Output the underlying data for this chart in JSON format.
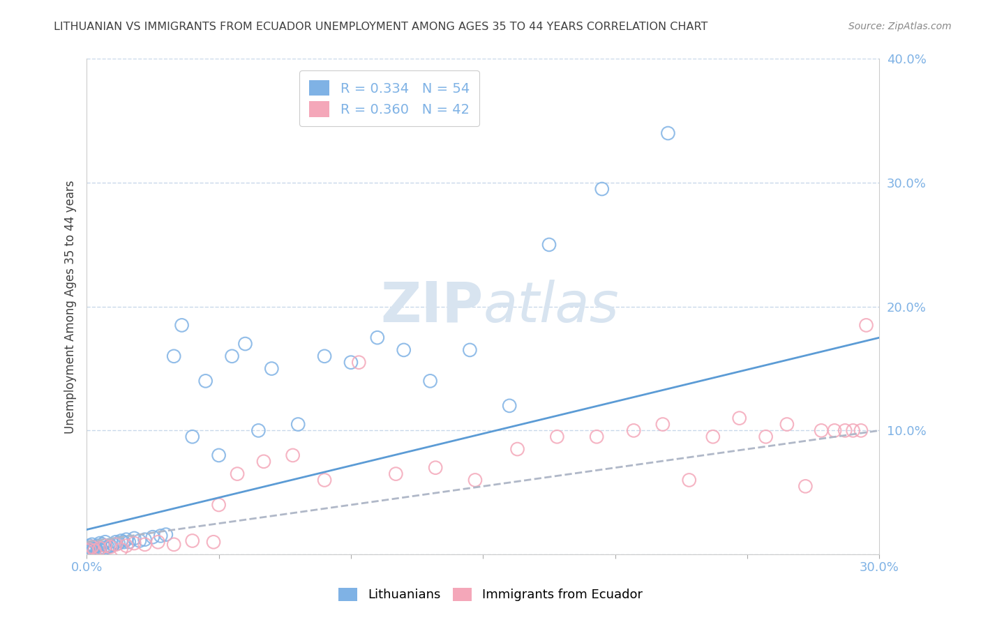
{
  "title": "LITHUANIAN VS IMMIGRANTS FROM ECUADOR UNEMPLOYMENT AMONG AGES 35 TO 44 YEARS CORRELATION CHART",
  "source_text": "Source: ZipAtlas.com",
  "ylabel": "Unemployment Among Ages 35 to 44 years",
  "legend_x_label": "Lithuanians",
  "legend_pink_label": "Immigrants from Ecuador",
  "blue_R": 0.334,
  "blue_N": 54,
  "pink_R": 0.36,
  "pink_N": 42,
  "xlim": [
    0.0,
    0.3
  ],
  "ylim": [
    0.0,
    0.4
  ],
  "xtick_labels": [
    "0.0%",
    "",
    "",
    "",
    "",
    "",
    "30.0%"
  ],
  "ytick_labels": [
    "",
    "10.0%",
    "20.0%",
    "30.0%",
    "40.0%"
  ],
  "blue_color": "#7fb2e5",
  "pink_color": "#f4a7b9",
  "blue_trend_color": "#5b9bd5",
  "pink_trend_color": "#b0b8c8",
  "title_color": "#404040",
  "axis_color": "#7fb2e5",
  "grid_color": "#c8d8ea",
  "watermark_color": "#d8e4f0",
  "blue_scatter_x": [
    0.0,
    0.0,
    0.0,
    0.001,
    0.001,
    0.001,
    0.002,
    0.002,
    0.002,
    0.003,
    0.003,
    0.004,
    0.004,
    0.005,
    0.005,
    0.006,
    0.006,
    0.007,
    0.007,
    0.008,
    0.009,
    0.01,
    0.011,
    0.012,
    0.013,
    0.014,
    0.015,
    0.016,
    0.018,
    0.02,
    0.022,
    0.025,
    0.028,
    0.03,
    0.033,
    0.036,
    0.04,
    0.045,
    0.05,
    0.055,
    0.06,
    0.065,
    0.07,
    0.08,
    0.09,
    0.1,
    0.11,
    0.12,
    0.13,
    0.145,
    0.16,
    0.175,
    0.195,
    0.22
  ],
  "blue_scatter_y": [
    0.002,
    0.004,
    0.006,
    0.001,
    0.003,
    0.007,
    0.002,
    0.005,
    0.008,
    0.004,
    0.006,
    0.003,
    0.007,
    0.004,
    0.009,
    0.003,
    0.008,
    0.005,
    0.01,
    0.006,
    0.007,
    0.008,
    0.01,
    0.009,
    0.011,
    0.01,
    0.012,
    0.01,
    0.013,
    0.011,
    0.012,
    0.014,
    0.015,
    0.016,
    0.16,
    0.185,
    0.095,
    0.14,
    0.08,
    0.16,
    0.17,
    0.1,
    0.15,
    0.105,
    0.16,
    0.155,
    0.175,
    0.165,
    0.14,
    0.165,
    0.12,
    0.25,
    0.295,
    0.34
  ],
  "pink_scatter_x": [
    0.0,
    0.001,
    0.002,
    0.003,
    0.005,
    0.007,
    0.009,
    0.011,
    0.013,
    0.015,
    0.018,
    0.022,
    0.027,
    0.033,
    0.04,
    0.048,
    0.057,
    0.067,
    0.078,
    0.09,
    0.103,
    0.117,
    0.132,
    0.147,
    0.163,
    0.178,
    0.193,
    0.207,
    0.218,
    0.228,
    0.237,
    0.247,
    0.257,
    0.265,
    0.272,
    0.278,
    0.283,
    0.287,
    0.29,
    0.293,
    0.295,
    0.05
  ],
  "pink_scatter_y": [
    0.003,
    0.004,
    0.006,
    0.003,
    0.005,
    0.007,
    0.006,
    0.008,
    0.004,
    0.007,
    0.009,
    0.008,
    0.01,
    0.008,
    0.011,
    0.01,
    0.065,
    0.075,
    0.08,
    0.06,
    0.155,
    0.065,
    0.07,
    0.06,
    0.085,
    0.095,
    0.095,
    0.1,
    0.105,
    0.06,
    0.095,
    0.11,
    0.095,
    0.105,
    0.055,
    0.1,
    0.1,
    0.1,
    0.1,
    0.1,
    0.185,
    0.04
  ],
  "blue_trend_x": [
    0.0,
    0.3
  ],
  "blue_trend_y": [
    0.02,
    0.175
  ],
  "pink_trend_x": [
    0.0,
    0.3
  ],
  "pink_trend_y": [
    0.01,
    0.1
  ],
  "background_color": "#ffffff",
  "figsize": [
    14.06,
    8.92
  ],
  "dpi": 100
}
